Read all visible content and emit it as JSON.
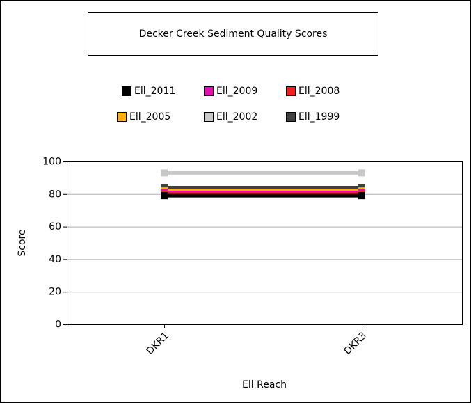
{
  "chart_data": {
    "type": "line",
    "title": "Decker Creek Sediment Quality Scores",
    "x_label": "Ell Reach",
    "y_label": "Score",
    "categories": [
      "DKR1",
      "DKR3"
    ],
    "series": [
      {
        "name": "Ell_2011",
        "color": "#000000",
        "values": [
          79,
          79
        ]
      },
      {
        "name": "Ell_2009",
        "color": "#e010b0",
        "values": [
          81,
          81
        ]
      },
      {
        "name": "Ell_2008",
        "color": "#f02020",
        "values": [
          80,
          80
        ]
      },
      {
        "name": "Ell_2005",
        "color": "#ffb000",
        "values": [
          82,
          82
        ]
      },
      {
        "name": "Ell_2002",
        "color": "#c8c8c8",
        "values": [
          93,
          93
        ]
      },
      {
        "name": "Ell_1999",
        "color": "#404040",
        "values": [
          84,
          84
        ]
      }
    ],
    "ylim": [
      0,
      100
    ],
    "yticks": [
      0,
      20,
      40,
      60,
      80,
      100
    ],
    "grid": true
  }
}
